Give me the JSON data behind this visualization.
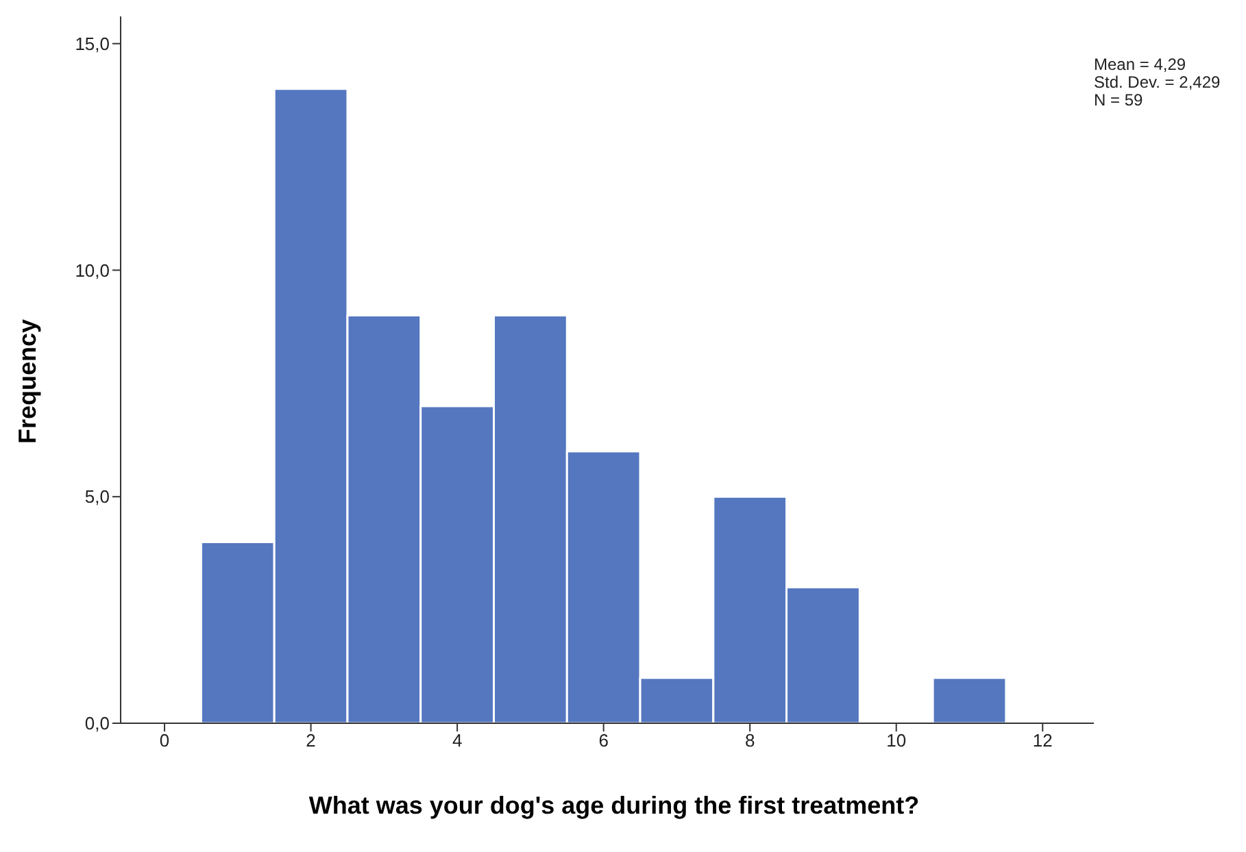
{
  "chart_data": {
    "type": "histogram",
    "xlabel": "What was your dog's age during the first treatment?",
    "ylabel": "Frequency",
    "bins": [
      0.5,
      1.5,
      2.5,
      3.5,
      4.5,
      5.5,
      6.5,
      7.5,
      8.5,
      9.5,
      10.5,
      11.5
    ],
    "values": [
      4,
      14,
      9,
      7,
      9,
      6,
      1,
      5,
      3,
      0,
      1
    ],
    "color": "#5577c0",
    "xlim": [
      -0.6,
      12.7
    ],
    "xticks": [
      0,
      2,
      4,
      6,
      8,
      10,
      12
    ],
    "ylim": [
      0,
      15.6
    ],
    "yticks": [
      {
        "value": 0,
        "label": "0,0"
      },
      {
        "value": 5,
        "label": "5,0"
      },
      {
        "value": 10,
        "label": "10,0"
      },
      {
        "value": 15,
        "label": "15,0"
      }
    ],
    "annotations": [
      "Mean = 4,29",
      "Std. Dev. = 2,429",
      "N = 59"
    ]
  }
}
